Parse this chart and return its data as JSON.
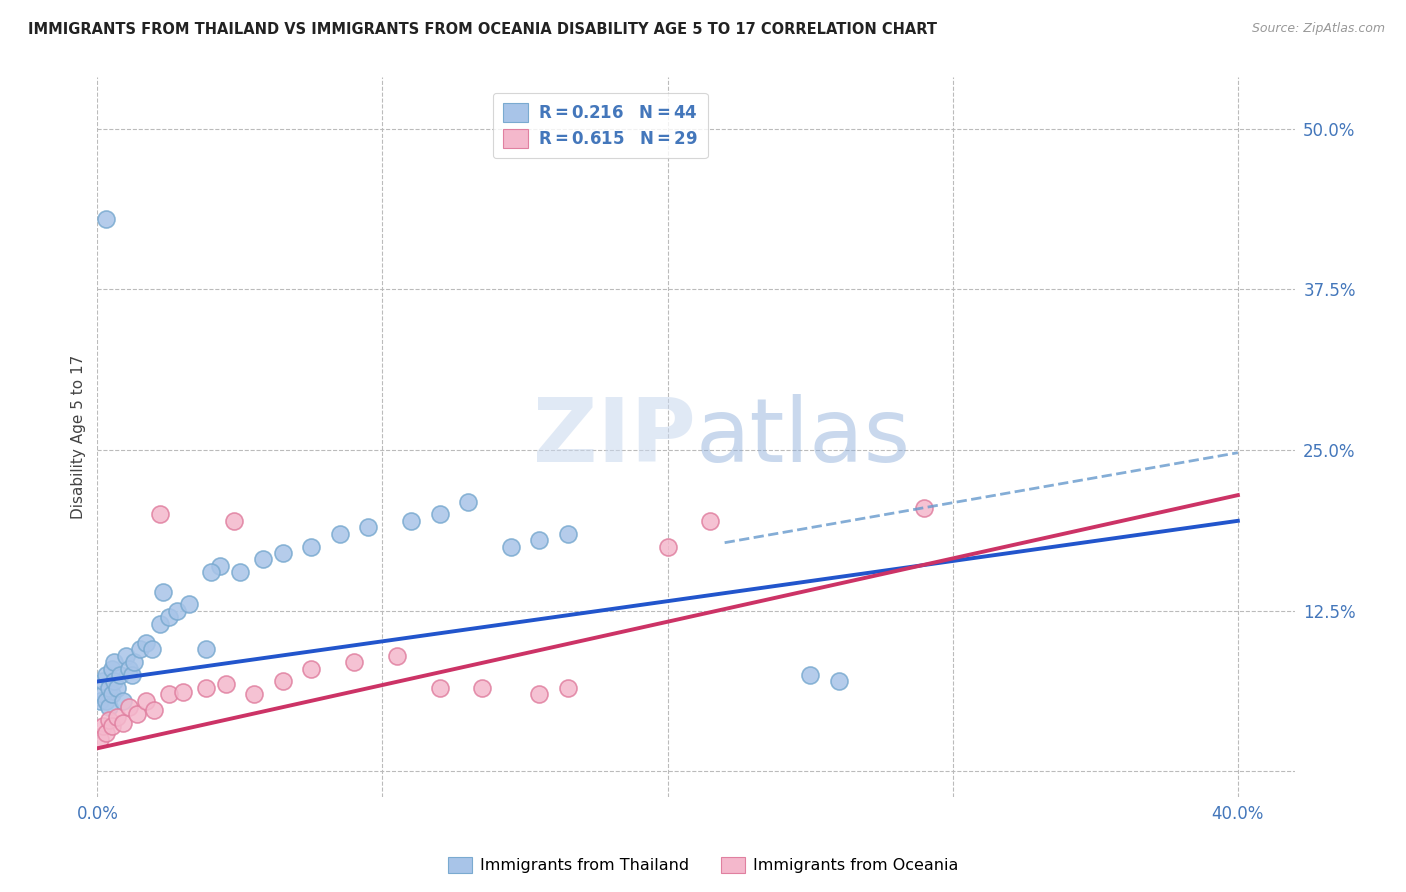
{
  "title": "IMMIGRANTS FROM THAILAND VS IMMIGRANTS FROM OCEANIA DISABILITY AGE 5 TO 17 CORRELATION CHART",
  "source": "Source: ZipAtlas.com",
  "ylabel": "Disability Age 5 to 17",
  "xlim": [
    0.0,
    0.42
  ],
  "ylim": [
    -0.02,
    0.54
  ],
  "x_ticks": [
    0.0,
    0.1,
    0.2,
    0.3,
    0.4
  ],
  "x_tick_labels": [
    "0.0%",
    "",
    "",
    "",
    "40.0%"
  ],
  "y_ticks_right": [
    0.0,
    0.125,
    0.25,
    0.375,
    0.5
  ],
  "y_tick_labels_right": [
    "",
    "12.5%",
    "25.0%",
    "37.5%",
    "50.0%"
  ],
  "thailand_color": "#a8c4e8",
  "thailand_edge_color": "#7aaad0",
  "oceania_color": "#f4b8cc",
  "oceania_edge_color": "#e080a0",
  "trend_blue": "#2255cc",
  "trend_pink": "#cc3366",
  "trend_blue_dash": "#6699cc",
  "watermark_color": "#d0dff0",
  "background_color": "#ffffff",
  "grid_color": "#bbbbbb",
  "tick_color": "#4477bb",
  "title_color": "#222222",
  "source_color": "#999999",
  "ylabel_color": "#444444",
  "legend_text_color": "#4477bb",
  "legend_box_color": "#eeeeee",
  "legend_edge_color": "#cccccc",
  "thailand_x": [
    0.001,
    0.002,
    0.002,
    0.003,
    0.003,
    0.004,
    0.004,
    0.005,
    0.005,
    0.006,
    0.006,
    0.007,
    0.008,
    0.009,
    0.01,
    0.011,
    0.012,
    0.013,
    0.015,
    0.017,
    0.019,
    0.022,
    0.025,
    0.028,
    0.032,
    0.038,
    0.043,
    0.05,
    0.058,
    0.065,
    0.075,
    0.085,
    0.095,
    0.11,
    0.12,
    0.13,
    0.145,
    0.155,
    0.165,
    0.26,
    0.25,
    0.023,
    0.04,
    0.003
  ],
  "thailand_y": [
    0.055,
    0.06,
    0.07,
    0.055,
    0.075,
    0.05,
    0.065,
    0.06,
    0.08,
    0.07,
    0.085,
    0.065,
    0.075,
    0.055,
    0.09,
    0.08,
    0.075,
    0.085,
    0.095,
    0.1,
    0.095,
    0.115,
    0.12,
    0.125,
    0.13,
    0.095,
    0.16,
    0.155,
    0.165,
    0.17,
    0.175,
    0.185,
    0.19,
    0.195,
    0.2,
    0.21,
    0.175,
    0.18,
    0.185,
    0.07,
    0.075,
    0.14,
    0.155,
    0.43
  ],
  "oceania_x": [
    0.001,
    0.002,
    0.003,
    0.004,
    0.005,
    0.007,
    0.009,
    0.011,
    0.014,
    0.017,
    0.02,
    0.025,
    0.03,
    0.038,
    0.045,
    0.055,
    0.065,
    0.075,
    0.09,
    0.105,
    0.12,
    0.135,
    0.155,
    0.165,
    0.2,
    0.215,
    0.29,
    0.022,
    0.048
  ],
  "oceania_y": [
    0.025,
    0.035,
    0.03,
    0.04,
    0.035,
    0.042,
    0.038,
    0.05,
    0.045,
    0.055,
    0.048,
    0.06,
    0.062,
    0.065,
    0.068,
    0.06,
    0.07,
    0.08,
    0.085,
    0.09,
    0.065,
    0.065,
    0.06,
    0.065,
    0.175,
    0.195,
    0.205,
    0.2,
    0.195
  ],
  "trend_blue_x0": 0.0,
  "trend_blue_y0": 0.07,
  "trend_blue_x1": 0.4,
  "trend_blue_y1": 0.195,
  "trend_blue_dash_x0": 0.22,
  "trend_blue_dash_y0": 0.178,
  "trend_blue_dash_x1": 0.4,
  "trend_blue_dash_y1": 0.248,
  "trend_pink_x0": 0.0,
  "trend_pink_y0": 0.018,
  "trend_pink_x1": 0.4,
  "trend_pink_y1": 0.215
}
